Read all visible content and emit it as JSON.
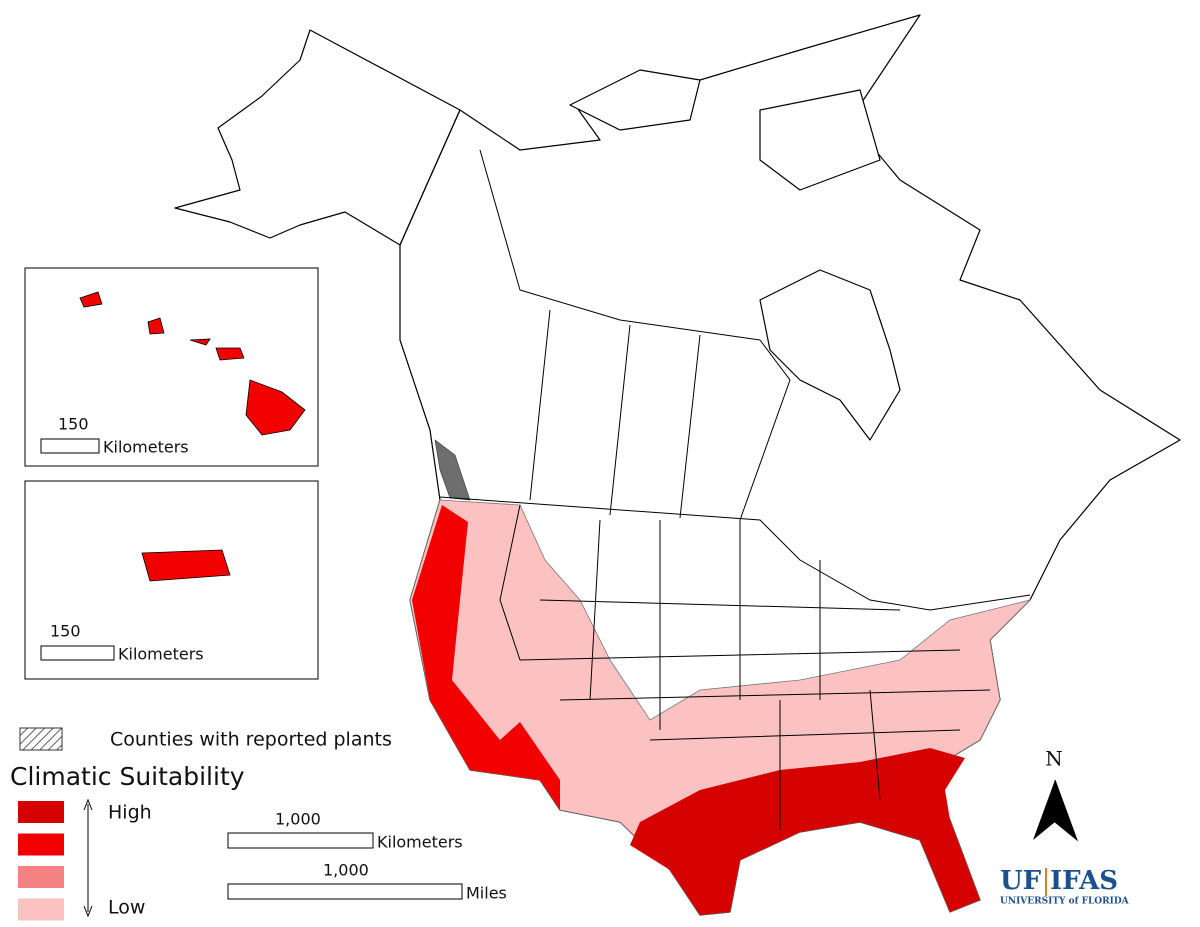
{
  "insets": [
    {
      "scale_label": "150",
      "unit": "Kilometers"
    },
    {
      "scale_label": "150",
      "unit": "Kilometers"
    }
  ],
  "legend": {
    "hatch_label": "Counties with reported plants",
    "title": "Climatic Suitability",
    "high": "High",
    "low": "Low",
    "colors": [
      "#d50000",
      "#f20000",
      "#f58282",
      "#fcc2c2"
    ]
  },
  "scale_bars": [
    {
      "label": "1,000",
      "unit": "Kilometers"
    },
    {
      "label": "1,000",
      "unit": "Miles"
    }
  ],
  "north": "N",
  "logo": {
    "uf": "UF",
    "ifas": "IFAS",
    "university": "UNIVERSITY of FLORIDA"
  }
}
